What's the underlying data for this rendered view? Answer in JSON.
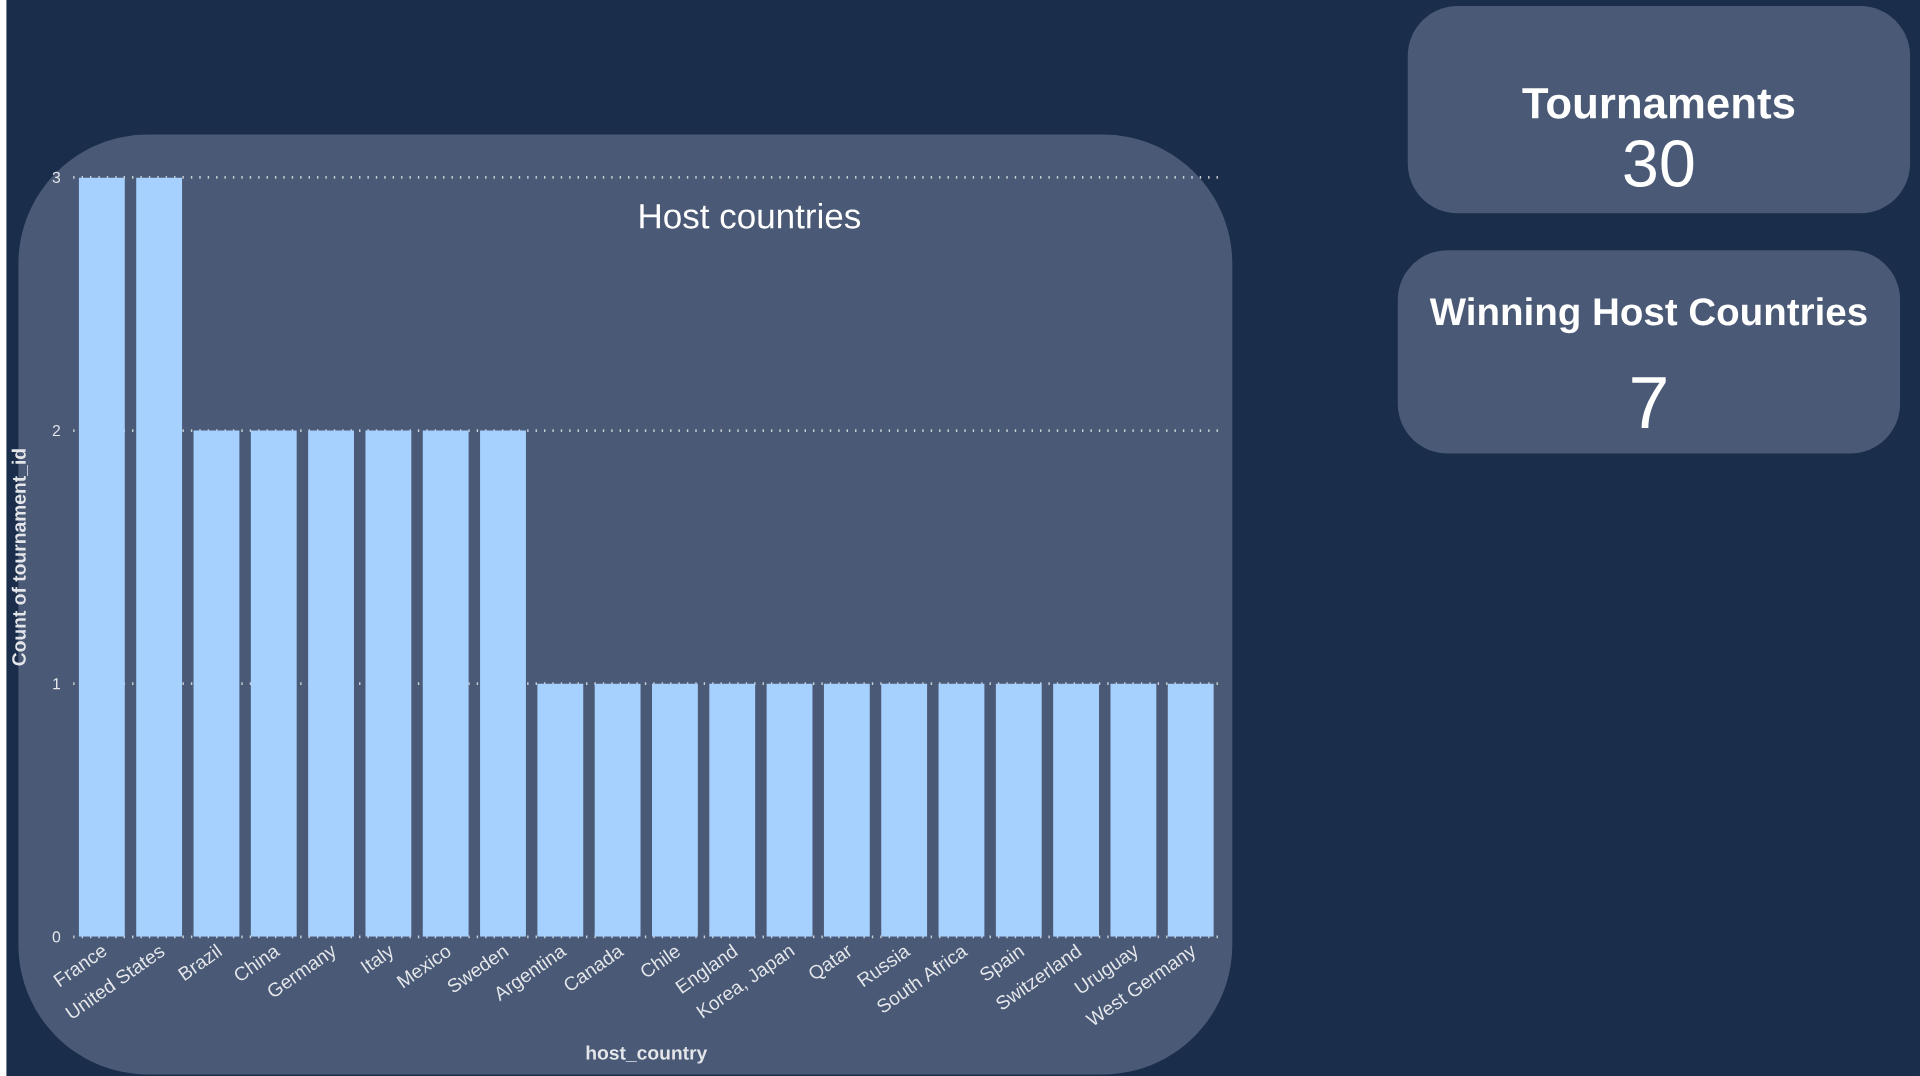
{
  "chart_data": [
    {
      "type": "bar",
      "title": "Host countries",
      "xlabel": "host_country",
      "ylabel": "Count of tournament_id",
      "categories": [
        "France",
        "United States",
        "Brazil",
        "China",
        "Germany",
        "Italy",
        "Mexico",
        "Sweden",
        "Argentina",
        "Canada",
        "Chile",
        "England",
        "Korea, Japan",
        "Qatar",
        "Russia",
        "South Africa",
        "Spain",
        "Switzerland",
        "Uruguay",
        "West Germany"
      ],
      "values": [
        3,
        3,
        2,
        2,
        2,
        2,
        2,
        2,
        1,
        1,
        1,
        1,
        1,
        1,
        1,
        1,
        1,
        1,
        1,
        1
      ],
      "color": "#a6d1ff",
      "ylim": [
        0,
        3
      ],
      "yticks": [
        0,
        1,
        2,
        3
      ],
      "grid": "y"
    },
    {
      "type": "other",
      "title": "Tournaments",
      "annotations": [
        "30"
      ]
    },
    {
      "type": "other",
      "title": "Winning Host Countries",
      "annotations": [
        "7"
      ]
    }
  ]
}
